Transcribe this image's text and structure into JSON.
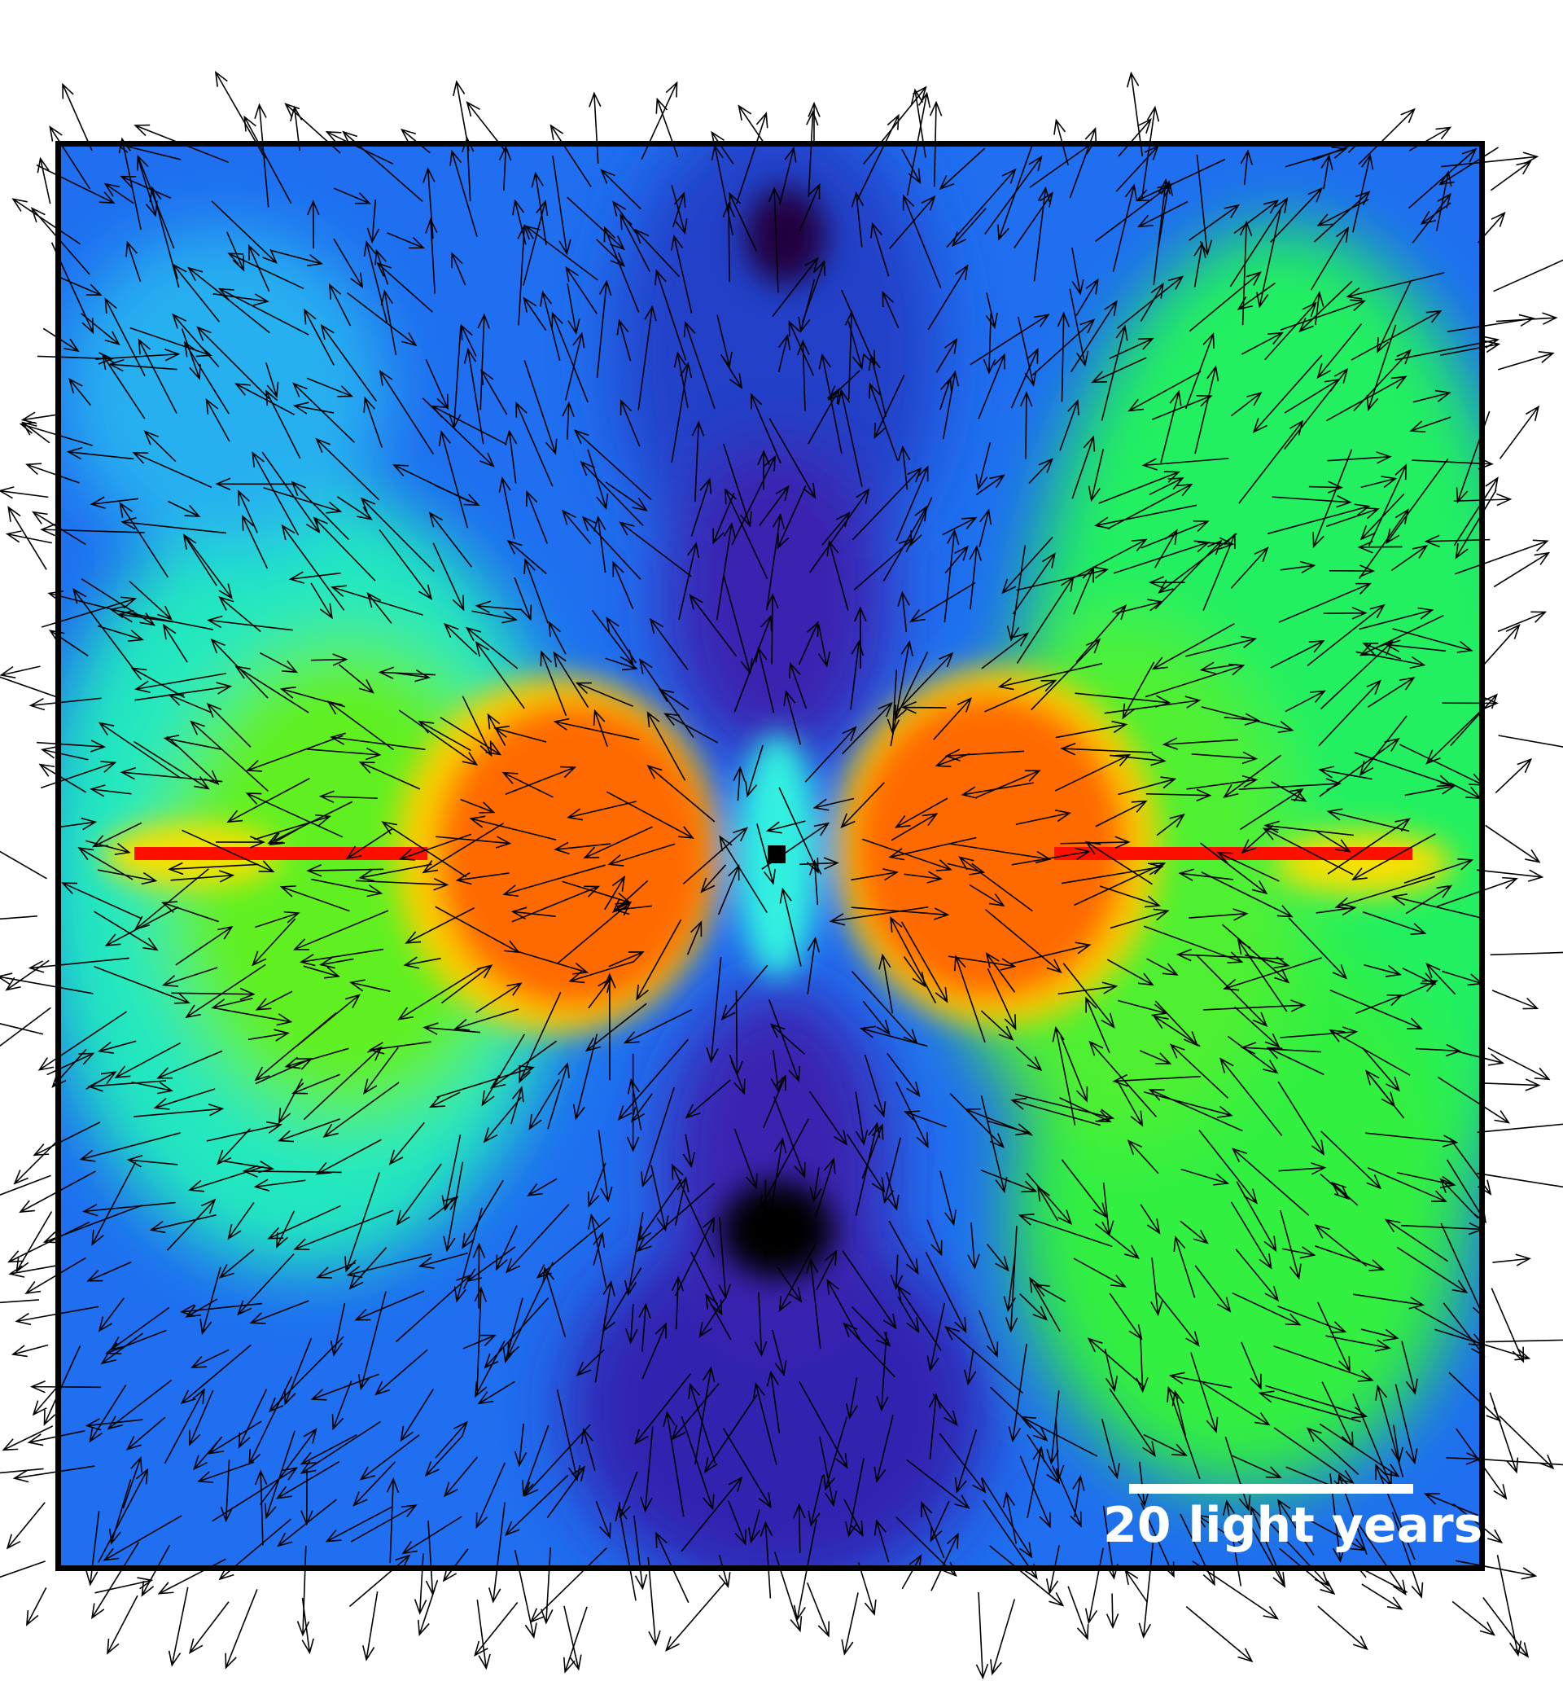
{
  "scale_bar": {
    "label": "20 light years"
  },
  "colormap": {
    "low": "#000000",
    "dark_purple": "#3a0a8c",
    "blue": "#1a5cf0",
    "cyan": "#00e0f0",
    "green": "#00f020",
    "yellow": "#f0f000",
    "orange": "#ff8000",
    "red": "#ff1000"
  },
  "arrow_color": "#000000",
  "frame_color": "#000000"
}
